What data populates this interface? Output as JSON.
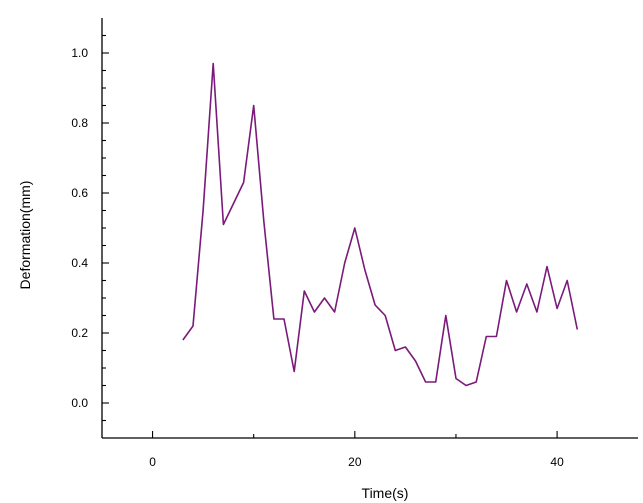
{
  "chart_data": {
    "type": "line",
    "title": "",
    "xlabel": "Time(s)",
    "ylabel": "Deformation(mm)",
    "xlim": [
      -5,
      48
    ],
    "ylim": [
      -0.1,
      1.1
    ],
    "x_ticks": [
      0,
      20,
      40
    ],
    "x_tick_labels": [
      "0",
      "20",
      "40"
    ],
    "y_ticks": [
      0.0,
      0.2,
      0.4,
      0.6,
      0.8,
      1.0
    ],
    "y_tick_labels": [
      "0.0",
      "0.2",
      "0.4",
      "0.6",
      "0.8",
      "1.0"
    ],
    "grid": false,
    "legend": "none",
    "series": [
      {
        "color": "#7a1a7a",
        "x": [
          3,
          4,
          5,
          6,
          7,
          8,
          9,
          10,
          11,
          12,
          13,
          14,
          15,
          16,
          17,
          18,
          19,
          20,
          21,
          22,
          23,
          24,
          25,
          26,
          27,
          28,
          29,
          30,
          31,
          32,
          33,
          34,
          35,
          36,
          37,
          38,
          39,
          40,
          41,
          42
        ],
        "y": [
          0.18,
          0.22,
          0.55,
          0.97,
          0.51,
          0.57,
          0.63,
          0.85,
          0.52,
          0.24,
          0.24,
          0.09,
          0.32,
          0.26,
          0.3,
          0.26,
          0.4,
          0.5,
          0.38,
          0.28,
          0.25,
          0.15,
          0.16,
          0.12,
          0.06,
          0.06,
          0.25,
          0.07,
          0.05,
          0.06,
          0.19,
          0.19,
          0.35,
          0.26,
          0.34,
          0.26,
          0.39,
          0.27,
          0.35,
          0.21
        ]
      }
    ]
  }
}
